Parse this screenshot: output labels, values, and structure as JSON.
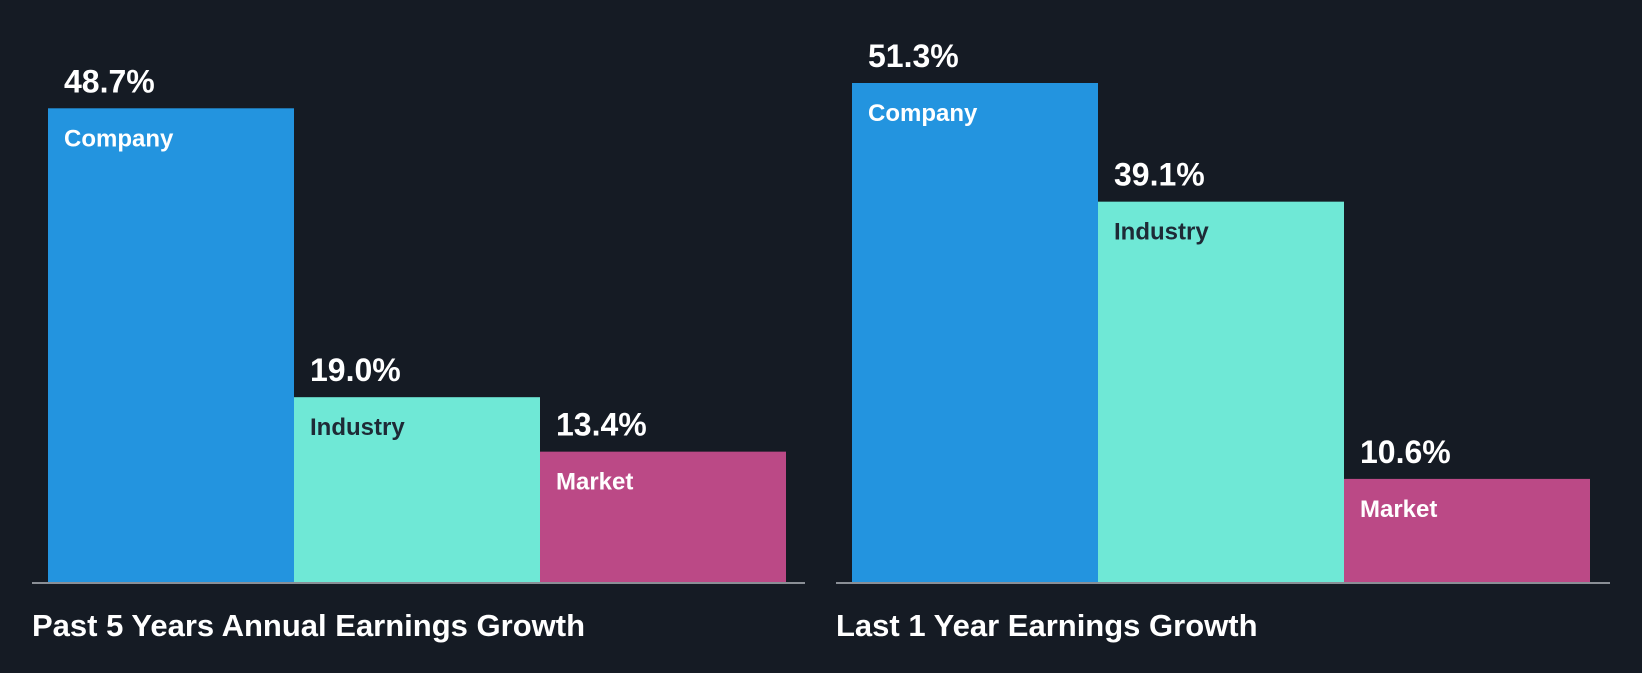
{
  "chart_data": [
    {
      "type": "bar",
      "title": "Past 5 Years Annual Earnings Growth",
      "categories": [
        "Company",
        "Industry",
        "Market"
      ],
      "values": [
        48.7,
        19.0,
        13.4
      ],
      "value_labels": [
        "48.7%",
        "19.0%",
        "13.4%"
      ],
      "unit": "%",
      "ylim": [
        0,
        51.3
      ],
      "grid": false,
      "legend": "none"
    },
    {
      "type": "bar",
      "title": "Last 1 Year Earnings Growth",
      "categories": [
        "Company",
        "Industry",
        "Market"
      ],
      "values": [
        51.3,
        39.1,
        10.6
      ],
      "value_labels": [
        "51.3%",
        "39.1%",
        "10.6%"
      ],
      "unit": "%",
      "ylim": [
        0,
        51.3
      ],
      "grid": false,
      "legend": "none"
    }
  ],
  "colors": {
    "background": "#151b24",
    "company": "#2394df",
    "industry": "#6fe8d6",
    "market": "#bb4986",
    "axis": "#8a8f96",
    "text_light": "#ffffff",
    "text_dark": "#1e2a36"
  }
}
